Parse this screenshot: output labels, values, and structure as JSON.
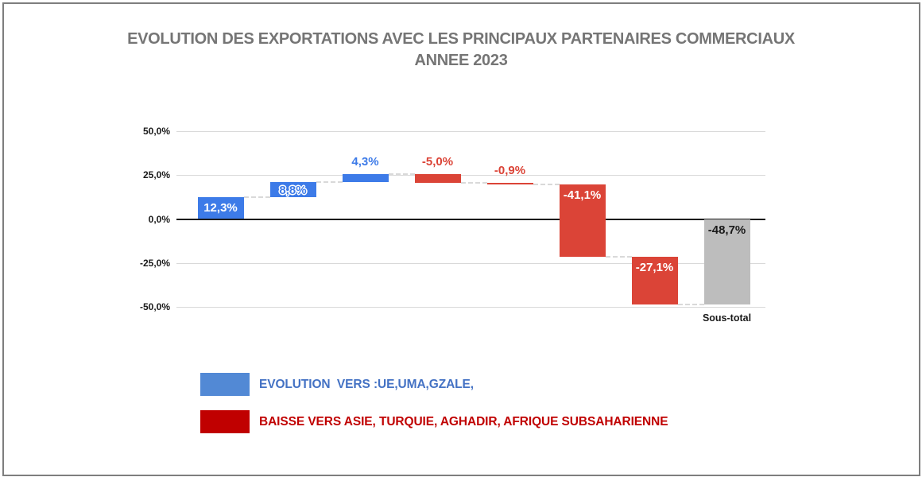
{
  "title": {
    "line1": "EVOLUTION DES EXPORTATIONS AVEC LES PRINCIPAUX PARTENAIRES COMMERCIAUX",
    "line2": "ANNEE 2023",
    "color": "#757575"
  },
  "chart_data": {
    "type": "waterfall",
    "title": "EVOLUTION DES EXPORTATIONS AVEC LES PRINCIPAUX PARTENAIRES COMMERCIAUX ANNEE 2023",
    "xlabel": "",
    "ylabel": "",
    "ylim": [
      -50,
      50
    ],
    "grid": "horizontal-gridlines-on",
    "legend_position": "bottom-left",
    "yticks": [
      {
        "label": "50,0%",
        "value": 50
      },
      {
        "label": "25,0%",
        "value": 25
      },
      {
        "label": "0,0%",
        "value": 0
      },
      {
        "label": "-25,0%",
        "value": -25
      },
      {
        "label": "-50,0%",
        "value": -50
      }
    ],
    "bars": [
      {
        "display": "12,3%",
        "value": 12.3,
        "type": "increase",
        "label_style": "inside-white",
        "category": ""
      },
      {
        "display": "8,8%",
        "value": 8.8,
        "type": "increase",
        "label_style": "inside-outline",
        "category": ""
      },
      {
        "display": "4,3%",
        "value": 4.3,
        "type": "increase",
        "label_style": "above",
        "category": ""
      },
      {
        "display": "-5,0%",
        "value": -5.0,
        "type": "decrease",
        "label_style": "above",
        "category": ""
      },
      {
        "display": "-0,9%",
        "value": -0.9,
        "type": "decrease",
        "label_style": "above",
        "category": ""
      },
      {
        "display": "-41,1%",
        "value": -41.1,
        "type": "decrease",
        "label_style": "inside-white",
        "category": ""
      },
      {
        "display": "-27,1%",
        "value": -27.1,
        "type": "decrease",
        "label_style": "inside-white",
        "category": ""
      },
      {
        "display": "-48,7%",
        "value": -48.7,
        "type": "subtotal",
        "label_style": "inside-dark",
        "category": "Sous-total"
      }
    ],
    "cumulative_levels": [
      12.3,
      21.1,
      25.4,
      20.4,
      19.5,
      -21.6,
      -48.7,
      -48.7
    ],
    "colors": {
      "increase": "#3d7be8",
      "decrease": "#db4437",
      "subtotal": "#bdbdbd",
      "label_inside_white": "#ffffff",
      "label_inside_dark": "#1a1a1a",
      "label_above_increase": "#3d7be8",
      "label_above_decrease": "#db4437",
      "gridline": "#d9d9d9",
      "zero_line": "#1a1a1a",
      "connector": "#d9d9d9",
      "axis_text": "#1a1a1a"
    }
  },
  "legend": {
    "items": [
      {
        "label": "EVOLUTION  VERS :UE,UMA,GZALE,",
        "swatch_color": "#5289d5",
        "text_color": "#4472c4"
      },
      {
        "label": "BAISSE VERS ASIE, TURQUIE, AGHADIR, AFRIQUE SUBSAHARIENNE",
        "swatch_color": "#c00000",
        "text_color": "#c00000"
      }
    ]
  }
}
